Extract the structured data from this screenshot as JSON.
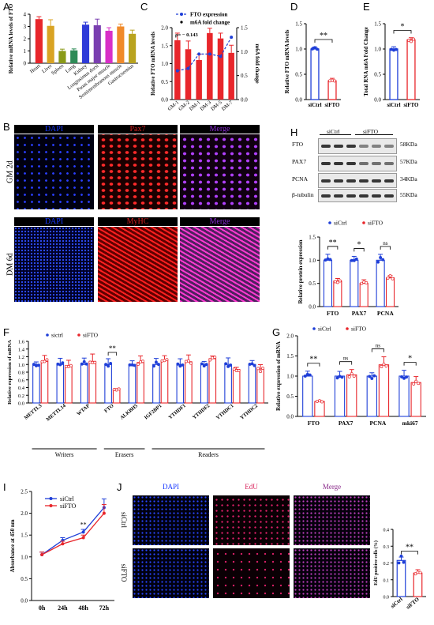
{
  "panels": {
    "A": "A",
    "B": "B",
    "C": "C",
    "D": "D",
    "E": "E",
    "F": "F",
    "G": "G",
    "H": "H",
    "I": "I",
    "J": "J"
  },
  "colors": {
    "red": "#e8262b",
    "blue": "#1f3fd8",
    "dapi_blue": "#1637ff",
    "pax7_red": "#d92020",
    "merge_purple": "#8b2ad6",
    "edu_red": "#d8205a"
  },
  "panel_A": {
    "chart_data": {
      "type": "bar",
      "ylabel": "Relative mRNA levels of FTO",
      "ylim": [
        0,
        4
      ],
      "yticks": [
        "0",
        "1",
        "2",
        "3",
        "4"
      ],
      "categories": [
        "Heart",
        "Liver",
        "Spleen",
        "Lung",
        "Kidney",
        "Longissimus dorsi",
        "Psoas major muscle",
        "Semimembranous muscle",
        "Gastrocnemius"
      ],
      "values": [
        3.6,
        3.05,
        1.0,
        1.05,
        3.15,
        3.1,
        2.65,
        3.0,
        2.4
      ],
      "errors": [
        0.2,
        0.5,
        0.15,
        0.12,
        0.2,
        0.5,
        0.25,
        0.2,
        0.3
      ],
      "colors": [
        "#e8262b",
        "#d9a323",
        "#8a9a18",
        "#2e8b57",
        "#2f3bd8",
        "#7a3fb0",
        "#d82fc7",
        "#f08a2a",
        "#b9a31e"
      ]
    }
  },
  "panel_C": {
    "legend": [
      "FTO expression",
      "m6A fold change"
    ],
    "annotation": "ρ= − 0.143",
    "chart_data": {
      "type": "bar",
      "ylabel": "Relative FTO mRNA levels",
      "y2label": "m6A fold change",
      "ylim": [
        0,
        2.0
      ],
      "yticks": [
        "0.0",
        "0.5",
        "1.0",
        "1.5",
        "2.0"
      ],
      "y2lim": [
        0,
        1.5
      ],
      "y2ticks": [
        "0.0",
        "0.5",
        "1.0",
        "1.5"
      ],
      "categories": [
        "GM-1",
        "GM-2",
        "DM-1",
        "DM-3",
        "DM-5",
        "DM-7"
      ],
      "series": [
        {
          "name": "FTO expression",
          "values": [
            1.65,
            1.4,
            1.1,
            1.85,
            1.7,
            1.3
          ]
        },
        {
          "name": "m6A fold change",
          "values": [
            0.6,
            0.65,
            0.95,
            0.95,
            0.9,
            1.3
          ]
        }
      ]
    }
  },
  "panel_D": {
    "sig": "**",
    "chart_data": {
      "type": "bar",
      "ylabel": "Relative FTO mRNA levels",
      "ylim": [
        0,
        1.5
      ],
      "yticks": [
        "0.0",
        "0.5",
        "1.0",
        "1.5"
      ],
      "categories": [
        "siCtrl",
        "siFTO"
      ],
      "values": [
        1.0,
        0.37
      ]
    }
  },
  "panel_E": {
    "sig": "*",
    "chart_data": {
      "type": "bar",
      "ylabel": "Total RNA m6A Fold Change",
      "ylim": [
        0,
        1.5
      ],
      "yticks": [
        "0.0",
        "0.5",
        "1.0",
        "1.5"
      ],
      "categories": [
        "siCtrl",
        "siFTO"
      ],
      "values": [
        1.0,
        1.18
      ]
    }
  },
  "panel_B": {
    "top_headers": [
      "DAPI",
      "Pax7",
      "Merge"
    ],
    "bottom_headers": [
      "DAPI",
      "MyHC",
      "Merge"
    ],
    "row_labels": [
      "GM 2d",
      "DM 6d"
    ]
  },
  "panel_H": {
    "group_labels": [
      "siCtrl",
      "siFTO"
    ],
    "blot_rows": [
      {
        "name": "FTO",
        "size": "58KDa"
      },
      {
        "name": "PAX7",
        "size": "57KDa"
      },
      {
        "name": "PCNA",
        "size": "34KDa"
      },
      {
        "name": "β-tubulin",
        "size": "55KDa"
      }
    ],
    "legend": [
      "siCtrl",
      "siFTO"
    ],
    "sigs": [
      "**",
      "*",
      "ns"
    ],
    "chart_data": {
      "type": "bar",
      "ylabel": "Relative protein expression",
      "ylim": [
        0,
        1.5
      ],
      "yticks": [
        "0.0",
        "0.5",
        "1.0",
        "1.5"
      ],
      "categories": [
        "FTO",
        "PAX7",
        "PCNA"
      ],
      "series": [
        {
          "name": "siCtrl",
          "values": [
            1.0,
            1.0,
            1.0
          ]
        },
        {
          "name": "siFTO",
          "values": [
            0.55,
            0.5,
            0.62
          ]
        }
      ]
    }
  },
  "panel_F": {
    "legend": [
      "sictrl",
      "siFTO"
    ],
    "sig": "**",
    "groups": [
      "Writers",
      "Erasers",
      "Readers"
    ],
    "chart_data": {
      "type": "bar",
      "ylabel": "Relative expression of mRNA",
      "ylim": [
        0,
        1.6
      ],
      "yticks": [
        "0.0",
        "0.2",
        "0.4",
        "0.6",
        "0.8",
        "1.0",
        "1.2",
        "1.4",
        "1.6"
      ],
      "categories": [
        "METTL3",
        "METTL14",
        "WTAP",
        "FTO",
        "ALKBH5",
        "IGF2BP1",
        "YTHDF1",
        "YTHDF2",
        "YTHDC1",
        "YTHDC2"
      ],
      "series": [
        {
          "name": "sictrl",
          "values": [
            1.0,
            1.0,
            1.0,
            1.0,
            1.0,
            1.0,
            1.0,
            1.0,
            1.0,
            1.0
          ]
        },
        {
          "name": "siFTO",
          "values": [
            1.08,
            0.97,
            1.08,
            0.35,
            1.05,
            1.1,
            1.07,
            1.15,
            0.87,
            0.88
          ]
        }
      ]
    }
  },
  "panel_G": {
    "legend": [
      "siCtrl",
      "siFTO"
    ],
    "sigs": [
      "**",
      "ns",
      "ns",
      "*"
    ],
    "chart_data": {
      "type": "bar",
      "ylabel": "Relative expression of mRNA",
      "ylim": [
        0,
        2.0
      ],
      "yticks": [
        "0.0",
        "0.5",
        "1.0",
        "1.5",
        "2.0"
      ],
      "categories": [
        "FTO",
        "PAX7",
        "PCNA",
        "mki67"
      ],
      "series": [
        {
          "name": "siCtrl",
          "values": [
            1.0,
            1.0,
            1.0,
            1.0
          ]
        },
        {
          "name": "siFTO",
          "values": [
            0.37,
            1.03,
            1.28,
            0.84
          ]
        }
      ]
    }
  },
  "panel_I": {
    "legend": [
      "siCtrl",
      "siFTO"
    ],
    "sig": "**",
    "chart_data": {
      "type": "line",
      "ylabel": "Absorbance at 450 nm",
      "ylim": [
        0,
        2.5
      ],
      "yticks": [
        "0.0",
        "0.5",
        "1.0",
        "1.5",
        "2.0",
        "2.5"
      ],
      "categories": [
        "0h",
        "24h",
        "48h",
        "72h"
      ],
      "series": [
        {
          "name": "siCtrl",
          "values": [
            1.05,
            1.38,
            1.57,
            2.13
          ]
        },
        {
          "name": "siFTO",
          "values": [
            1.05,
            1.3,
            1.44,
            2.0
          ]
        }
      ]
    }
  },
  "panel_J": {
    "headers": [
      "DAPI",
      "EdU",
      "Merge"
    ],
    "row_labels": [
      "siCtrl",
      "siFTO"
    ],
    "sig": "**",
    "chart_data": {
      "type": "bar",
      "ylabel": "EdU positive cells (%)",
      "ylim": [
        0,
        0.4
      ],
      "yticks": [
        "0.0",
        "0.1",
        "0.2",
        "0.3",
        "0.4"
      ],
      "categories": [
        "siCtrl",
        "siFTO"
      ],
      "values": [
        0.215,
        0.14
      ]
    }
  }
}
